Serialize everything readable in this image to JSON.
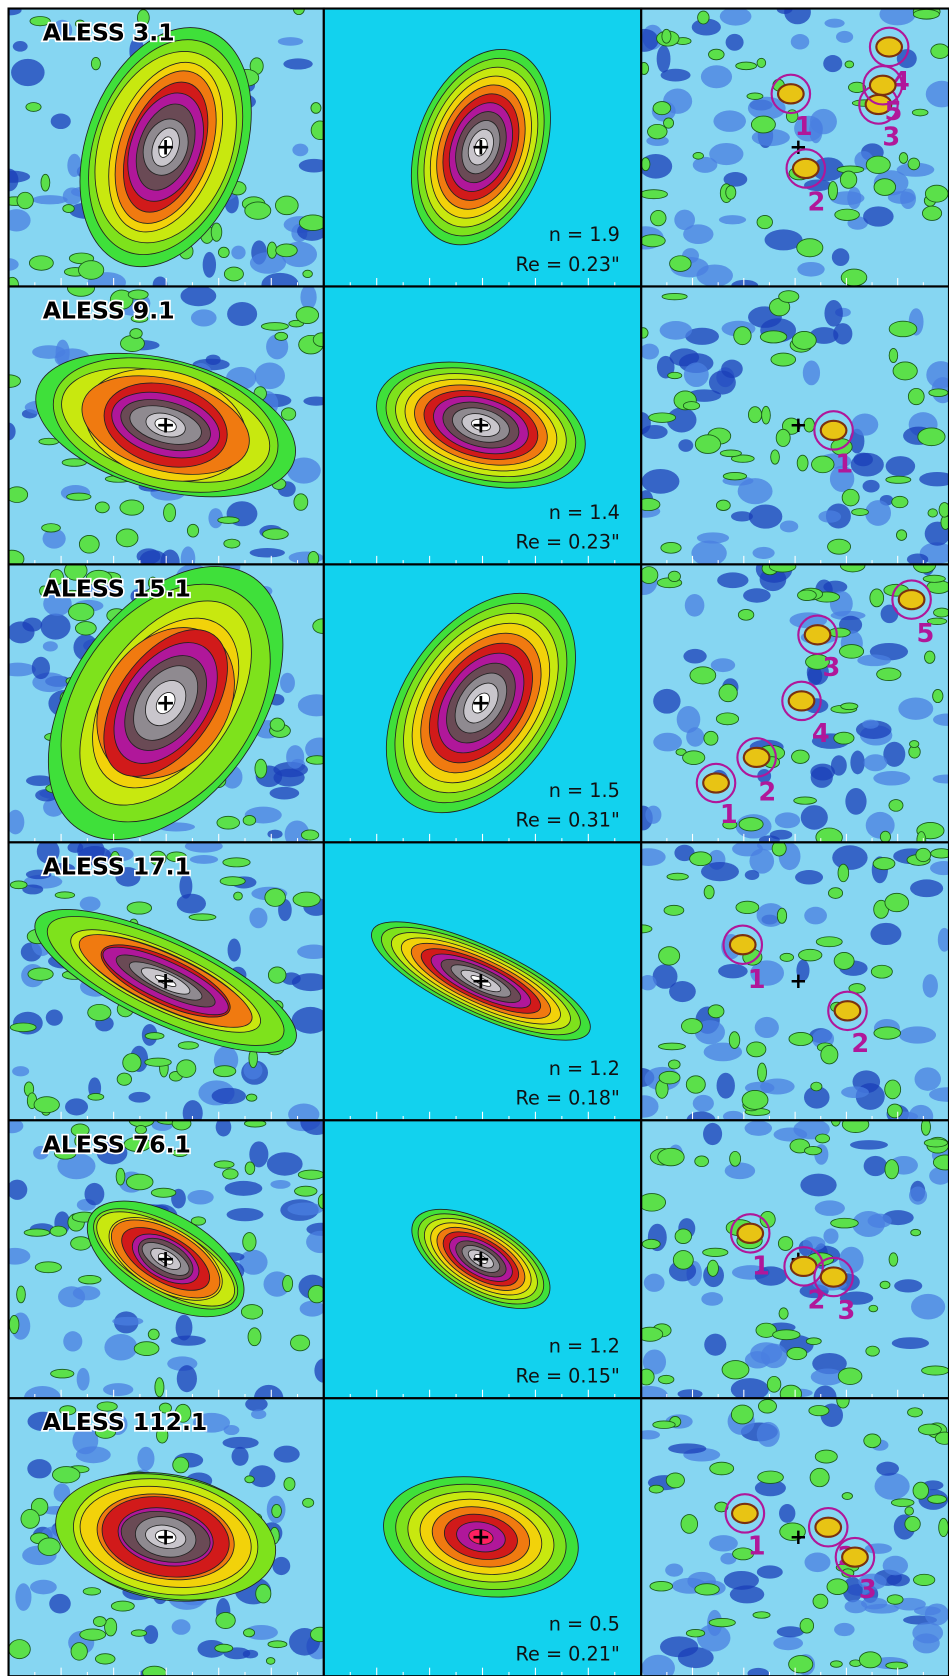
{
  "panels": [
    {
      "name": "ALESS 3.1",
      "sersic_index": "n = 1.9",
      "effective_radius": "Re = 0.23\"",
      "components": [
        "1",
        "2",
        "3",
        "4",
        "5"
      ]
    },
    {
      "name": "ALESS 9.1",
      "sersic_index": "n = 1.4",
      "effective_radius": "Re = 0.23\"",
      "components": [
        "1"
      ]
    },
    {
      "name": "ALESS 15.1",
      "sersic_index": "n = 1.5",
      "effective_radius": "Re = 0.31\"",
      "components": [
        "1",
        "2",
        "3",
        "4",
        "5"
      ]
    },
    {
      "name": "ALESS 17.1",
      "sersic_index": "n = 1.2",
      "effective_radius": "Re = 0.18\"",
      "components": [
        "1",
        "2"
      ]
    },
    {
      "name": "ALESS 76.1",
      "sersic_index": "n = 1.2",
      "effective_radius": "Re = 0.15\"",
      "components": [
        "1",
        "2",
        "3"
      ]
    },
    {
      "name": "ALESS 112.1",
      "sersic_index": "n = 0.5",
      "effective_radius": "Re = 0.21\"",
      "components": [
        "1",
        "2",
        "3"
      ]
    }
  ]
}
